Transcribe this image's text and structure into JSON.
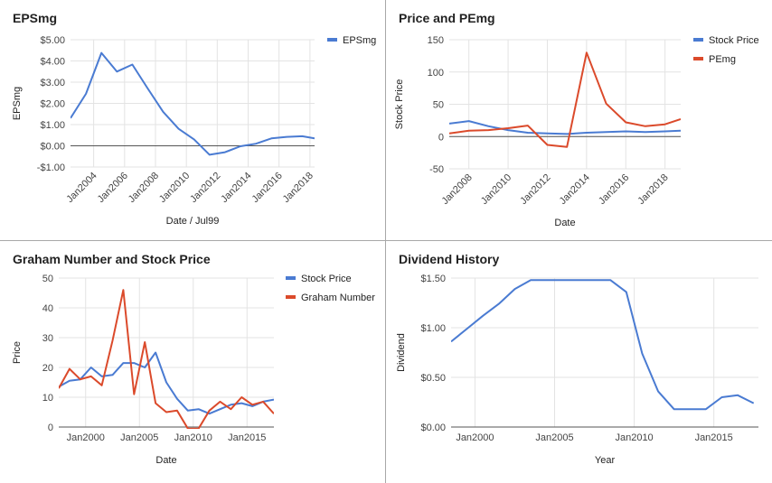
{
  "chart_data": [
    {
      "type": "line",
      "title": "EPSmg",
      "xlabel": "Date / Jul99",
      "ylabel": "EPSmg",
      "x": [
        2002.5,
        2003.5,
        2004.5,
        2005.5,
        2006.5,
        2007.5,
        2008.5,
        2009.5,
        2010.5,
        2011.5,
        2012.5,
        2013.5,
        2014.5,
        2015.5,
        2016.5,
        2017.5,
        2018.3
      ],
      "series": [
        {
          "name": "EPSmg",
          "color": "#4a7bd2",
          "values": [
            1.3,
            2.45,
            4.38,
            3.5,
            3.83,
            2.7,
            1.6,
            0.8,
            0.3,
            -0.42,
            -0.3,
            -0.02,
            0.1,
            0.35,
            0.42,
            0.45,
            0.35
          ]
        }
      ],
      "xlim": [
        2002.5,
        2018.3
      ],
      "ylim": [
        -1,
        5
      ],
      "xticks": [
        2004,
        2006,
        2008,
        2010,
        2012,
        2014,
        2016,
        2018
      ],
      "xtick_labels": [
        "Jan2004",
        "Jan2006",
        "Jan2008",
        "Jan2010",
        "Jan2012",
        "Jan2014",
        "Jan2016",
        "Jan2018"
      ],
      "yticks": [
        5,
        4,
        3,
        2,
        1,
        0,
        -1
      ],
      "ytick_labels": [
        "$5.00",
        "$4.00",
        "$3.00",
        "$2.00",
        "$1.00",
        "$0.00",
        "-$1.00"
      ],
      "baseline": 0,
      "legend_position": "top-right",
      "x_tick_rotation": "diagonal"
    },
    {
      "type": "line",
      "title": "Price and PEmg",
      "xlabel": "Date",
      "ylabel": "Stock Price",
      "x": [
        2007,
        2008,
        2009,
        2010,
        2011,
        2012,
        2013,
        2014,
        2015,
        2016,
        2017,
        2018,
        2018.8
      ],
      "series": [
        {
          "name": "Stock Price",
          "color": "#4a7bd2",
          "values": [
            20,
            24,
            16,
            10,
            6,
            5,
            4,
            6,
            7,
            8,
            7,
            8,
            9
          ]
        },
        {
          "name": "PEmg",
          "color": "#db4a2b",
          "values": [
            5,
            9,
            10,
            13,
            17,
            -13,
            -16,
            130,
            51,
            22,
            16,
            19,
            27
          ]
        }
      ],
      "xlim": [
        2007,
        2018.8
      ],
      "ylim": [
        -50,
        150
      ],
      "xticks": [
        2008,
        2010,
        2012,
        2014,
        2016,
        2018
      ],
      "xtick_labels": [
        "Jan2008",
        "Jan2010",
        "Jan2012",
        "Jan2014",
        "Jan2016",
        "Jan2018"
      ],
      "yticks": [
        150,
        100,
        50,
        0,
        -50
      ],
      "ytick_labels": [
        "150",
        "100",
        "50",
        "0",
        "-50"
      ],
      "baseline": 0,
      "legend_position": "top-right",
      "x_tick_rotation": "diagonal"
    },
    {
      "type": "line",
      "title": "Graham Number and Stock Price",
      "xlabel": "Date",
      "ylabel": "Price",
      "x": [
        1997.5,
        1998.5,
        1999.5,
        2000.5,
        2001.5,
        2002.5,
        2003.5,
        2004.5,
        2005.5,
        2006.5,
        2007.5,
        2008.5,
        2009.5,
        2010.5,
        2011.5,
        2012.5,
        2013.5,
        2014.5,
        2015.5,
        2016.5,
        2017.5
      ],
      "series": [
        {
          "name": "Stock Price",
          "color": "#4a7bd2",
          "values": [
            13.5,
            15.5,
            16,
            20,
            17,
            17.5,
            21.5,
            21.5,
            20,
            25,
            15,
            9.5,
            5.5,
            6,
            4.5,
            6,
            7.5,
            8,
            7,
            8.5,
            9.2
          ]
        },
        {
          "name": "Graham Number",
          "color": "#db4a2b",
          "values": [
            13,
            19.5,
            16,
            17,
            14,
            29,
            46,
            11,
            28.5,
            8,
            5,
            5.5,
            -0.5,
            -0.5,
            5.5,
            8.5,
            6,
            10,
            7.5,
            8.5,
            4.5
          ]
        }
      ],
      "xlim": [
        1997.5,
        2017.5
      ],
      "ylim": [
        0,
        50
      ],
      "xticks": [
        2000,
        2005,
        2010,
        2015
      ],
      "xtick_labels": [
        "Jan2000",
        "Jan2005",
        "Jan2010",
        "Jan2015"
      ],
      "yticks": [
        50,
        40,
        30,
        20,
        10,
        0
      ],
      "ytick_labels": [
        "50",
        "40",
        "30",
        "20",
        "10",
        "0"
      ],
      "legend_position": "top-right",
      "x_tick_rotation": "none"
    },
    {
      "type": "line",
      "title": "Dividend History",
      "xlabel": "Year",
      "ylabel": "Dividend",
      "x": [
        1998.5,
        1999.5,
        2000.5,
        2001.5,
        2002.5,
        2003.5,
        2004.5,
        2005.5,
        2006.5,
        2007.5,
        2008.5,
        2009.5,
        2010.5,
        2011.5,
        2012.5,
        2013.5,
        2014.5,
        2015.5,
        2016.5,
        2017.5
      ],
      "series": [
        {
          "name": "Dividend",
          "color": "#4a7bd2",
          "values": [
            0.86,
            0.99,
            1.12,
            1.24,
            1.39,
            1.48,
            1.48,
            1.48,
            1.48,
            1.48,
            1.48,
            1.36,
            0.74,
            0.36,
            0.18,
            0.18,
            0.18,
            0.3,
            0.32,
            0.24
          ]
        }
      ],
      "xlim": [
        1998.5,
        2017.8
      ],
      "ylim": [
        0,
        1.5
      ],
      "xticks": [
        2000,
        2005,
        2010,
        2015
      ],
      "xtick_labels": [
        "Jan2000",
        "Jan2005",
        "Jan2010",
        "Jan2015"
      ],
      "yticks": [
        1.5,
        1.0,
        0.5,
        0
      ],
      "ytick_labels": [
        "$1.50",
        "$1.00",
        "$0.50",
        "$0.00"
      ],
      "legend_position": "none",
      "x_tick_rotation": "none"
    }
  ]
}
